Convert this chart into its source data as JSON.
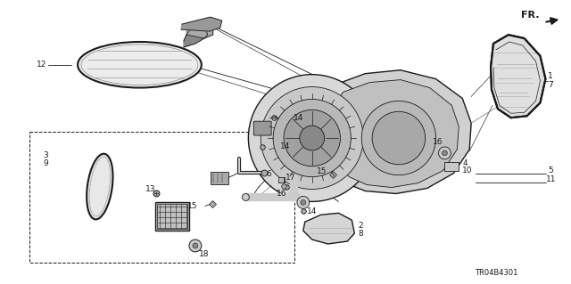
{
  "bg_color": "#ffffff",
  "line_color": "#1a1a1a",
  "figsize": [
    6.4,
    3.19
  ],
  "dpi": 100,
  "diagram_code": "TR04B4301"
}
